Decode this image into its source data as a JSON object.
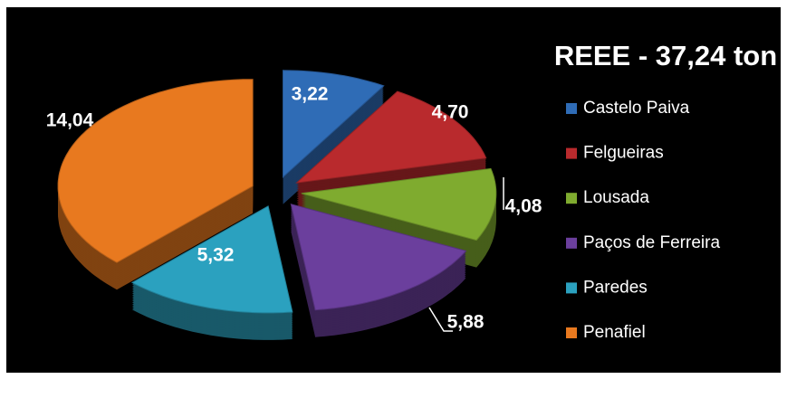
{
  "chart_data": {
    "type": "pie",
    "title": "REEE -  37,24 ton",
    "categories": [
      "Castelo Paiva",
      "Felgueiras",
      "Lousada",
      "Paços de Ferreira",
      "Paredes",
      "Penafiel"
    ],
    "values": [
      3.22,
      4.7,
      4.08,
      5.88,
      5.32,
      14.04
    ],
    "value_labels": [
      "3,22",
      "4,70",
      "4,08",
      "5,88",
      "5,32",
      "14,04"
    ],
    "colors": [
      "#2f6cb6",
      "#b92a2d",
      "#7fab2f",
      "#6b3f9d",
      "#2ba1bf",
      "#e8791f"
    ]
  }
}
